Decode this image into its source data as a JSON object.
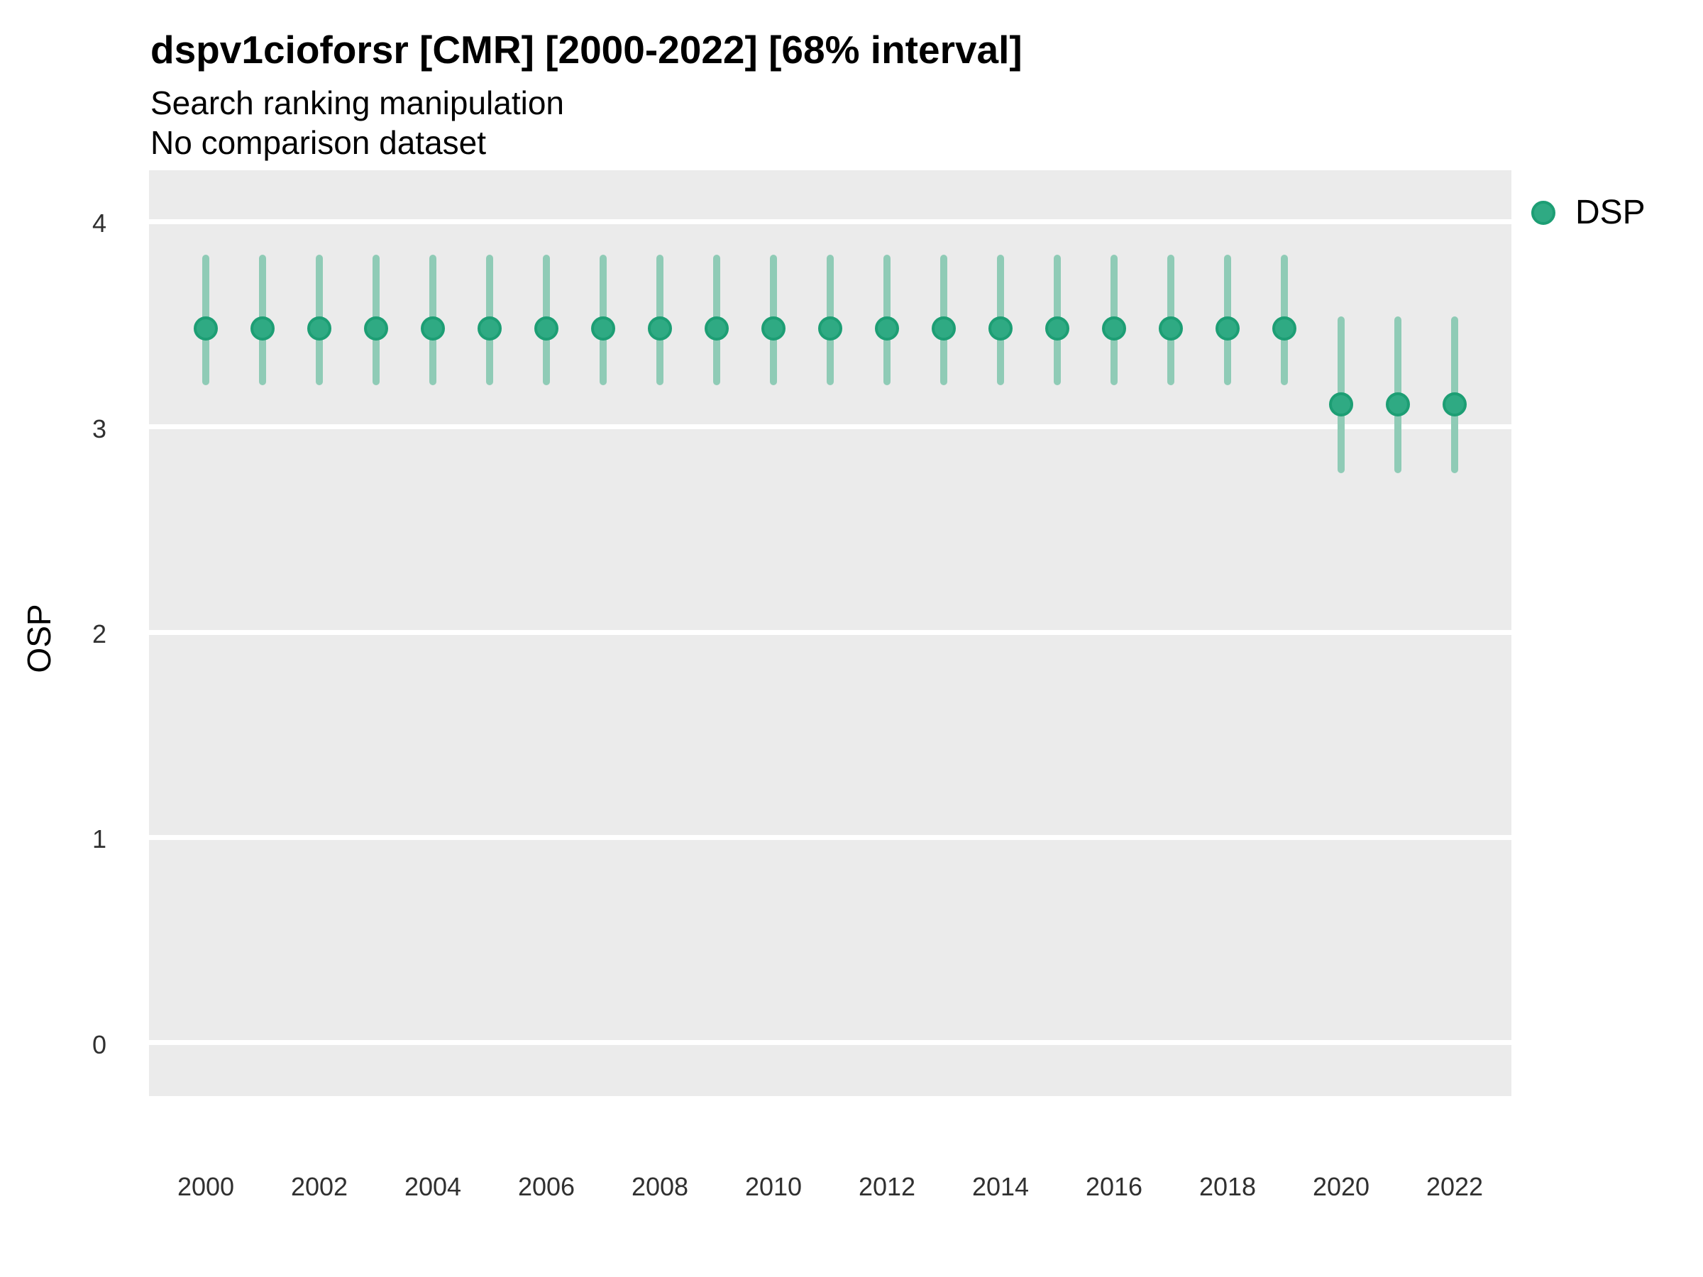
{
  "header": {
    "title": "dspv1cioforsr [CMR] [2000-2022] [68% interval]",
    "subtitle1": "Search ranking manipulation",
    "subtitle2": "No comparison dataset"
  },
  "axes": {
    "y_title": "OSP",
    "y_ticks": [
      0,
      1,
      2,
      3,
      4
    ],
    "x_ticks": [
      2000,
      2002,
      2004,
      2006,
      2008,
      2010,
      2012,
      2014,
      2016,
      2018,
      2020,
      2022
    ]
  },
  "legend": {
    "items": [
      {
        "label": "DSP",
        "color": "#2FAA83",
        "stroke": "#1D9E74"
      }
    ]
  },
  "colors": {
    "plot_background": "#EBEBEB",
    "gridline": "#FFFFFF",
    "point_fill": "#2FAA83",
    "point_stroke": "#1D9E74",
    "interval_bar": "#8FCBB6",
    "text": "#000000",
    "tick_text": "#303030"
  },
  "chart_data": {
    "type": "scatter",
    "subtype": "pointrange",
    "title": "dspv1cioforsr [CMR] [2000-2022] [68% interval]",
    "subtitle": "Search ranking manipulation",
    "note": "No comparison dataset",
    "interval_level": "68%",
    "xlabel": "",
    "ylabel": "OSP",
    "xlim": [
      1999,
      2023
    ],
    "ylim": [
      -0.26,
      4.25
    ],
    "grid": "horizontal-major-only",
    "legend_position": "top-right",
    "series": [
      {
        "name": "DSP",
        "points": [
          {
            "x": 2000,
            "y": 3.48,
            "lo": 3.22,
            "hi": 3.82
          },
          {
            "x": 2001,
            "y": 3.48,
            "lo": 3.22,
            "hi": 3.82
          },
          {
            "x": 2002,
            "y": 3.48,
            "lo": 3.22,
            "hi": 3.82
          },
          {
            "x": 2003,
            "y": 3.48,
            "lo": 3.22,
            "hi": 3.82
          },
          {
            "x": 2004,
            "y": 3.48,
            "lo": 3.22,
            "hi": 3.82
          },
          {
            "x": 2005,
            "y": 3.48,
            "lo": 3.22,
            "hi": 3.82
          },
          {
            "x": 2006,
            "y": 3.48,
            "lo": 3.22,
            "hi": 3.82
          },
          {
            "x": 2007,
            "y": 3.48,
            "lo": 3.22,
            "hi": 3.82
          },
          {
            "x": 2008,
            "y": 3.48,
            "lo": 3.22,
            "hi": 3.82
          },
          {
            "x": 2009,
            "y": 3.48,
            "lo": 3.22,
            "hi": 3.82
          },
          {
            "x": 2010,
            "y": 3.48,
            "lo": 3.22,
            "hi": 3.82
          },
          {
            "x": 2011,
            "y": 3.48,
            "lo": 3.22,
            "hi": 3.82
          },
          {
            "x": 2012,
            "y": 3.48,
            "lo": 3.22,
            "hi": 3.82
          },
          {
            "x": 2013,
            "y": 3.48,
            "lo": 3.22,
            "hi": 3.82
          },
          {
            "x": 2014,
            "y": 3.48,
            "lo": 3.22,
            "hi": 3.82
          },
          {
            "x": 2015,
            "y": 3.48,
            "lo": 3.22,
            "hi": 3.82
          },
          {
            "x": 2016,
            "y": 3.48,
            "lo": 3.22,
            "hi": 3.82
          },
          {
            "x": 2017,
            "y": 3.48,
            "lo": 3.22,
            "hi": 3.82
          },
          {
            "x": 2018,
            "y": 3.48,
            "lo": 3.22,
            "hi": 3.82
          },
          {
            "x": 2019,
            "y": 3.48,
            "lo": 3.22,
            "hi": 3.82
          },
          {
            "x": 2020,
            "y": 3.11,
            "lo": 2.79,
            "hi": 3.52
          },
          {
            "x": 2021,
            "y": 3.11,
            "lo": 2.79,
            "hi": 3.52
          },
          {
            "x": 2022,
            "y": 3.11,
            "lo": 2.79,
            "hi": 3.52
          }
        ]
      }
    ]
  }
}
